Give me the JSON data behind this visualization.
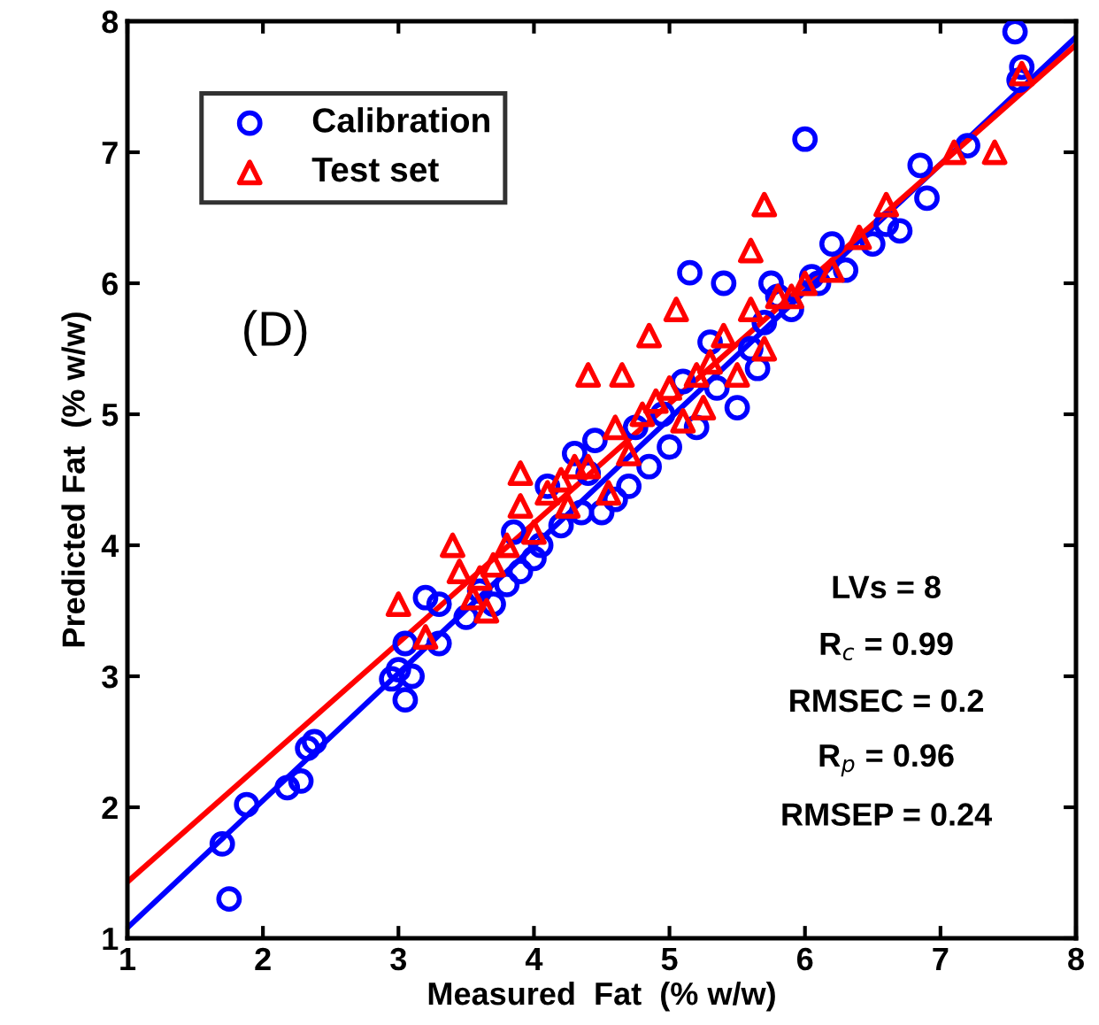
{
  "chart_data": {
    "type": "scatter",
    "xlabel": "Measured  Fat  (% w/w)",
    "ylabel": "Predicted Fat  (% w/w)",
    "xlim": [
      1,
      8
    ],
    "ylim": [
      1,
      8
    ],
    "xticks": [
      1,
      2,
      3,
      4,
      5,
      6,
      7,
      8
    ],
    "yticks": [
      1,
      2,
      3,
      4,
      5,
      6,
      7,
      8
    ],
    "grid": false,
    "legend": "top left",
    "annotations": [
      "(D)",
      "LVs = 8",
      "R$_{c}$ = 0.99",
      "RMSEC = 0.2",
      "R$_{p}$ = 0.96",
      "RMSEP = 0.24"
    ],
    "series": [
      {
        "name": "Calibration",
        "marker": "circle",
        "color": "#0000ff",
        "x": [
          1.75,
          1.7,
          1.88,
          2.18,
          2.28,
          2.33,
          2.38,
          2.95,
          3.0,
          3.05,
          3.1,
          3.05,
          3.2,
          3.3,
          3.3,
          3.5,
          3.6,
          3.7,
          3.8,
          3.85,
          3.9,
          4.0,
          4.05,
          4.1,
          4.2,
          4.3,
          4.35,
          4.4,
          4.45,
          4.5,
          4.6,
          4.7,
          4.75,
          4.85,
          4.95,
          5.0,
          5.1,
          5.15,
          5.2,
          5.3,
          5.35,
          5.4,
          5.5,
          5.6,
          5.65,
          5.7,
          5.75,
          5.8,
          5.9,
          6.0,
          6.05,
          6.1,
          6.2,
          6.3,
          6.5,
          6.6,
          6.7,
          6.85,
          6.9,
          7.2,
          7.55,
          7.58,
          7.6
        ],
        "values": [
          1.3,
          1.72,
          2.02,
          2.15,
          2.2,
          2.45,
          2.5,
          2.98,
          3.05,
          2.82,
          3.0,
          3.25,
          3.6,
          3.55,
          3.25,
          3.45,
          3.65,
          3.55,
          3.7,
          4.1,
          3.8,
          3.9,
          4.0,
          4.45,
          4.15,
          4.7,
          4.25,
          4.55,
          4.8,
          4.25,
          4.35,
          4.45,
          4.9,
          4.6,
          5.0,
          4.75,
          5.25,
          6.08,
          4.9,
          5.55,
          5.2,
          6.0,
          5.05,
          5.5,
          5.35,
          5.7,
          6.0,
          5.9,
          5.8,
          7.1,
          6.05,
          6.0,
          6.3,
          6.1,
          6.3,
          6.45,
          6.4,
          6.9,
          6.65,
          7.05,
          7.92,
          7.55,
          7.65
        ]
      },
      {
        "name": "Test set",
        "marker": "triangle",
        "color": "#ff0000",
        "x": [
          3.0,
          3.2,
          3.4,
          3.45,
          3.55,
          3.6,
          3.7,
          3.8,
          3.9,
          3.9,
          4.0,
          4.1,
          4.2,
          4.3,
          4.4,
          4.4,
          4.6,
          4.65,
          4.7,
          4.8,
          4.85,
          4.9,
          5.0,
          5.05,
          5.1,
          5.2,
          5.3,
          5.4,
          5.5,
          5.6,
          5.6,
          5.7,
          5.7,
          5.8,
          5.9,
          6.0,
          6.2,
          6.4,
          6.6,
          7.1,
          7.4,
          7.6,
          4.55,
          4.25,
          3.65,
          5.25
        ],
        "values": [
          3.55,
          3.3,
          4.0,
          3.8,
          3.6,
          3.75,
          3.85,
          4.0,
          4.3,
          4.55,
          4.1,
          4.4,
          4.5,
          4.6,
          4.6,
          5.3,
          4.9,
          5.3,
          4.7,
          5.0,
          5.6,
          5.1,
          5.2,
          5.8,
          4.95,
          5.3,
          5.4,
          5.6,
          5.3,
          5.8,
          6.25,
          6.6,
          5.5,
          5.9,
          5.9,
          6.0,
          6.1,
          6.35,
          6.6,
          7.0,
          7.0,
          7.6,
          4.4,
          4.3,
          3.5,
          5.05
        ]
      },
      {
        "type": "line",
        "color": "#0000ff",
        "x": [
          1,
          8
        ],
        "values": [
          1.08,
          7.88
        ]
      },
      {
        "type": "line",
        "color": "#ff0000",
        "x": [
          1,
          8
        ],
        "values": [
          1.43,
          7.82
        ]
      }
    ]
  }
}
